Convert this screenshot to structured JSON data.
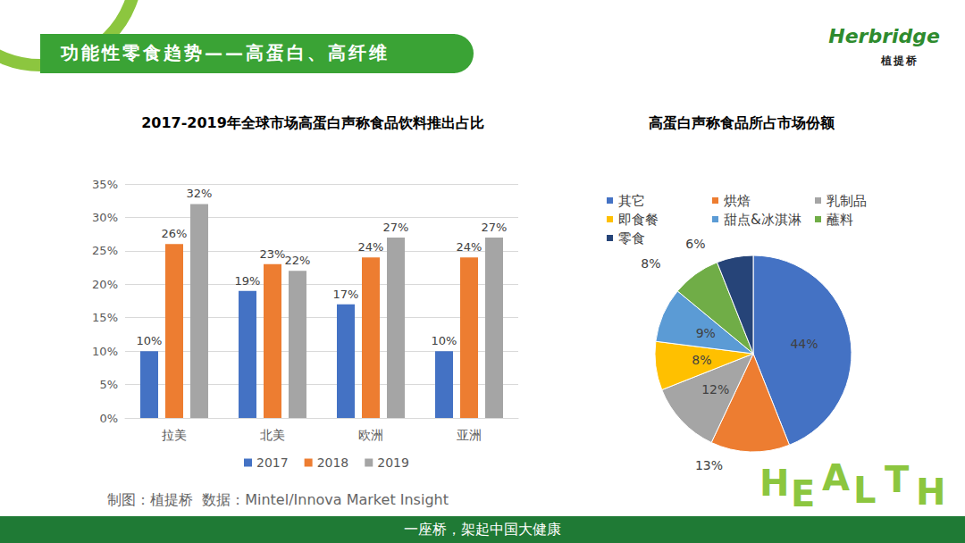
{
  "header": {
    "title": "功能性零食趋势——高蛋白、高纤维",
    "brand": "Herbridge",
    "brand_sub": "植提桥"
  },
  "source": "制图：植提桥  数据：Mintel/Innova Market Insight",
  "footer": "一座桥，架起中国大健康",
  "decoration": "HEALTH",
  "chart_data": [
    {
      "type": "bar",
      "title": "2017-2019年全球市场高蛋白声称食品饮料推出占比",
      "categories": [
        "拉美",
        "北美",
        "欧洲",
        "亚洲"
      ],
      "series": [
        {
          "name": "2017",
          "color": "#4472c4",
          "values": [
            10,
            19,
            17,
            10
          ],
          "value_labels": [
            "10%",
            "19%",
            "17%",
            "10%"
          ]
        },
        {
          "name": "2018",
          "color": "#ed7d31",
          "values": [
            26,
            23,
            24,
            24
          ],
          "value_labels": [
            "26%",
            "23%",
            "24%",
            "24%"
          ]
        },
        {
          "name": "2019",
          "color": "#a5a5a5",
          "values": [
            32,
            22,
            27,
            27
          ],
          "value_labels": [
            "32%",
            "22%",
            "27%",
            "27%"
          ]
        }
      ],
      "ylim": [
        0,
        35
      ],
      "yticks": [
        {
          "value": 0,
          "label": "0%"
        },
        {
          "value": 5,
          "label": "5%"
        },
        {
          "value": 10,
          "label": "10%"
        },
        {
          "value": 15,
          "label": "15%"
        },
        {
          "value": 20,
          "label": "20%"
        },
        {
          "value": 25,
          "label": "25%"
        },
        {
          "value": 30,
          "label": "30%"
        },
        {
          "value": 35,
          "label": "35%"
        }
      ],
      "grid": true,
      "legend": "bottom",
      "data_labels": true
    },
    {
      "type": "pie",
      "title": "高蛋白声称食品所占市场份额",
      "categories": [
        "其它",
        "烘焙",
        "乳制品",
        "即食餐",
        "甜点&冰淇淋",
        "蘸料",
        "零食"
      ],
      "values": [
        44,
        13,
        12,
        8,
        9,
        8,
        6
      ],
      "value_labels": [
        "44%",
        "13%",
        "12%",
        "8%",
        "9%",
        "8%",
        "6%"
      ],
      "colors": [
        "#4472c4",
        "#ed7d31",
        "#a5a5a5",
        "#ffc000",
        "#5b9bd5",
        "#70ad47",
        "#264478"
      ],
      "legend": "top",
      "data_labels": true
    }
  ]
}
